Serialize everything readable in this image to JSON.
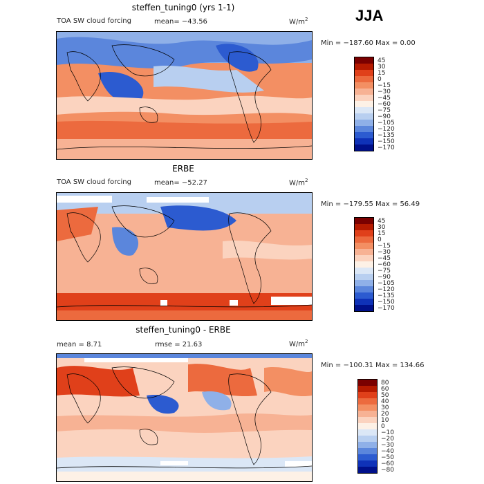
{
  "season": "JJA",
  "panels": [
    {
      "title": "steffen_tuning0 (yrs 1-1)",
      "left_label": "TOA SW cloud forcing",
      "mean_text": "mean= −43.56",
      "units": "W/m",
      "units_exp": "2",
      "minmax": "Min = −187.60  Max =    0.00",
      "levels": [
        "45",
        "30",
        "15",
        "0",
        "−15",
        "−30",
        "−45",
        "−60",
        "−75",
        "−90",
        "−105",
        "−120",
        "−135",
        "−150",
        "−170"
      ]
    },
    {
      "title": "ERBE",
      "left_label": "TOA SW cloud forcing",
      "mean_text": "mean= −52.27",
      "units": "W/m",
      "units_exp": "2",
      "minmax": "Min = −179.55  Max =   56.49",
      "levels": [
        "45",
        "30",
        "15",
        "0",
        "−15",
        "−30",
        "−45",
        "−60",
        "−75",
        "−90",
        "−105",
        "−120",
        "−135",
        "−150",
        "−170"
      ]
    },
    {
      "title": "steffen_tuning0 - ERBE",
      "left_label": "mean =    8.71",
      "mean_text": "rmse =   21.63",
      "units": "W/m",
      "units_exp": "2",
      "minmax": "Min = −100.31  Max = 134.66",
      "levels": [
        "80",
        "60",
        "50",
        "40",
        "30",
        "20",
        "10",
        "0",
        "−10",
        "−20",
        "−30",
        "−40",
        "−50",
        "−60",
        "−80"
      ]
    }
  ],
  "colors": {
    "abs_scale": [
      "#7a0000",
      "#b51a00",
      "#e0401a",
      "#ec6a3e",
      "#f38f63",
      "#f7b294",
      "#fbd3bf",
      "#fdf1e6",
      "#dbe7f6",
      "#b8cff0",
      "#8fb0e8",
      "#5b86dc",
      "#2c5bd0",
      "#0f32b8",
      "#00108a"
    ],
    "diff_scale": [
      "#7a0000",
      "#b51a00",
      "#e0401a",
      "#ec6a3e",
      "#f38f63",
      "#f7b294",
      "#fbd3bf",
      "#fdf1e6",
      "#dbe7f6",
      "#b8cff0",
      "#8fb0e8",
      "#5b86dc",
      "#2c5bd0",
      "#0f32b8",
      "#00108a"
    ]
  }
}
